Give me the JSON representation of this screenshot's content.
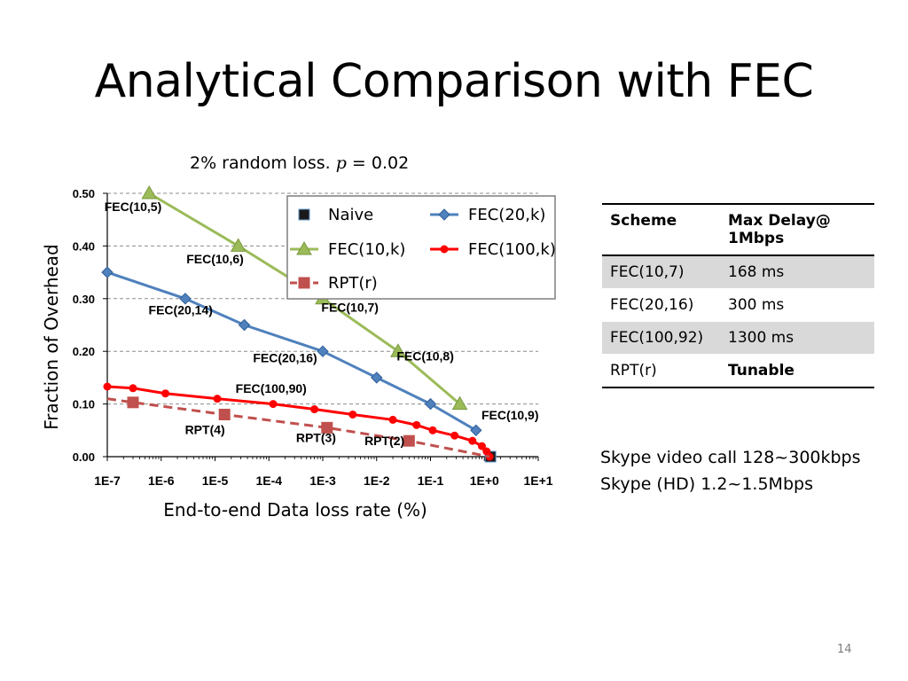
{
  "slide": {
    "title": "Analytical Comparison with FEC",
    "page_number": "14"
  },
  "chart_data": {
    "type": "line",
    "subtitle_prefix": "2% random loss. ",
    "subtitle_var": "p",
    "subtitle_suffix": " =  0.02",
    "xlabel": "End-to-end Data loss rate (%)",
    "ylabel": "Fraction of Overhead",
    "x_scale": "log",
    "x_ticks": [
      "1E-7",
      "1E-6",
      "1E-5",
      "1E-4",
      "1E-3",
      "1E-2",
      "1E-1",
      "1E+0",
      "1E+1"
    ],
    "xlim": [
      1e-07,
      10
    ],
    "y_ticks": [
      "0.00",
      "0.10",
      "0.20",
      "0.30",
      "0.40",
      "0.50"
    ],
    "ylim": [
      0,
      0.5
    ],
    "grid": "horizontal-dashed",
    "legend_position": "top-right",
    "series": [
      {
        "name": "Naive",
        "color": "#1a1a1a",
        "marker": "square",
        "line": "none",
        "points": [
          [
            1.3,
            0.0
          ]
        ]
      },
      {
        "name": "FEC(20,k)",
        "color": "#4f81bd",
        "marker": "diamond",
        "line": "solid",
        "points": [
          [
            1e-07,
            0.35
          ],
          [
            2.8e-06,
            0.3
          ],
          [
            3.5e-05,
            0.25
          ],
          [
            0.001,
            0.2
          ],
          [
            0.01,
            0.15
          ],
          [
            0.1,
            0.1
          ],
          [
            0.7,
            0.05
          ]
        ]
      },
      {
        "name": "FEC(10,k)",
        "color": "#9bbb59",
        "marker": "triangle",
        "line": "solid",
        "points": [
          [
            6e-07,
            0.5
          ],
          [
            2.7e-05,
            0.4
          ],
          [
            0.001,
            0.3
          ],
          [
            0.025,
            0.2
          ],
          [
            0.35,
            0.1
          ]
        ]
      },
      {
        "name": "FEC(100,k)",
        "color": "#ff0000",
        "marker": "circle",
        "line": "solid",
        "points": [
          [
            1e-07,
            0.133
          ],
          [
            3e-07,
            0.13
          ],
          [
            1.2e-06,
            0.12
          ],
          [
            1.1e-05,
            0.11
          ],
          [
            0.00012,
            0.1
          ],
          [
            0.0007,
            0.09
          ],
          [
            0.0036,
            0.08
          ],
          [
            0.02,
            0.07
          ],
          [
            0.055,
            0.06
          ],
          [
            0.11,
            0.05
          ],
          [
            0.28,
            0.04
          ],
          [
            0.6,
            0.03
          ],
          [
            0.9,
            0.02
          ],
          [
            1.1,
            0.01
          ],
          [
            1.25,
            0.0
          ]
        ]
      },
      {
        "name": "RPT(r)",
        "color": "#c0504d",
        "marker": "square",
        "line": "dashed",
        "points": [
          [
            1e-07,
            0.11
          ],
          [
            3e-07,
            0.103
          ],
          [
            1.5e-05,
            0.08
          ],
          [
            0.0012,
            0.055
          ],
          [
            0.04,
            0.03
          ],
          [
            1.25,
            0.0
          ]
        ]
      }
    ],
    "annotations": [
      {
        "text": "FEC(10,5)",
        "x": 3e-07,
        "y": 0.466
      },
      {
        "text": "FEC(10,6)",
        "x": 1e-05,
        "y": 0.367
      },
      {
        "text": "FEC(20,14)",
        "x": 2.3e-06,
        "y": 0.27
      },
      {
        "text": "FEC(10,7)",
        "x": 0.0032,
        "y": 0.275
      },
      {
        "text": "FEC(20,16)",
        "x": 0.0002,
        "y": 0.179
      },
      {
        "text": "FEC(10,8)",
        "x": 0.08,
        "y": 0.183
      },
      {
        "text": "FEC(100,90)",
        "x": 0.00011,
        "y": 0.121
      },
      {
        "text": "FEC(10,9)",
        "x": 3.0,
        "y": 0.071
      },
      {
        "text": "RPT(4)",
        "x": 6.5e-06,
        "y": 0.043
      },
      {
        "text": "RPT(3)",
        "x": 0.00075,
        "y": 0.028
      },
      {
        "text": "RPT(2)",
        "x": 0.014,
        "y": 0.022
      }
    ]
  },
  "table": {
    "headers": [
      "Scheme",
      "Max Delay@\n1Mbps"
    ],
    "rows": [
      [
        "FEC(10,7)",
        "168 ms"
      ],
      [
        "FEC(20,16)",
        "300 ms"
      ],
      [
        "FEC(100,92)",
        "1300 ms"
      ],
      [
        "RPT(r)",
        "Tunable"
      ]
    ]
  },
  "notes": [
    "Skype video call 128~300kbps",
    "Skype (HD) 1.2~1.5Mbps"
  ]
}
